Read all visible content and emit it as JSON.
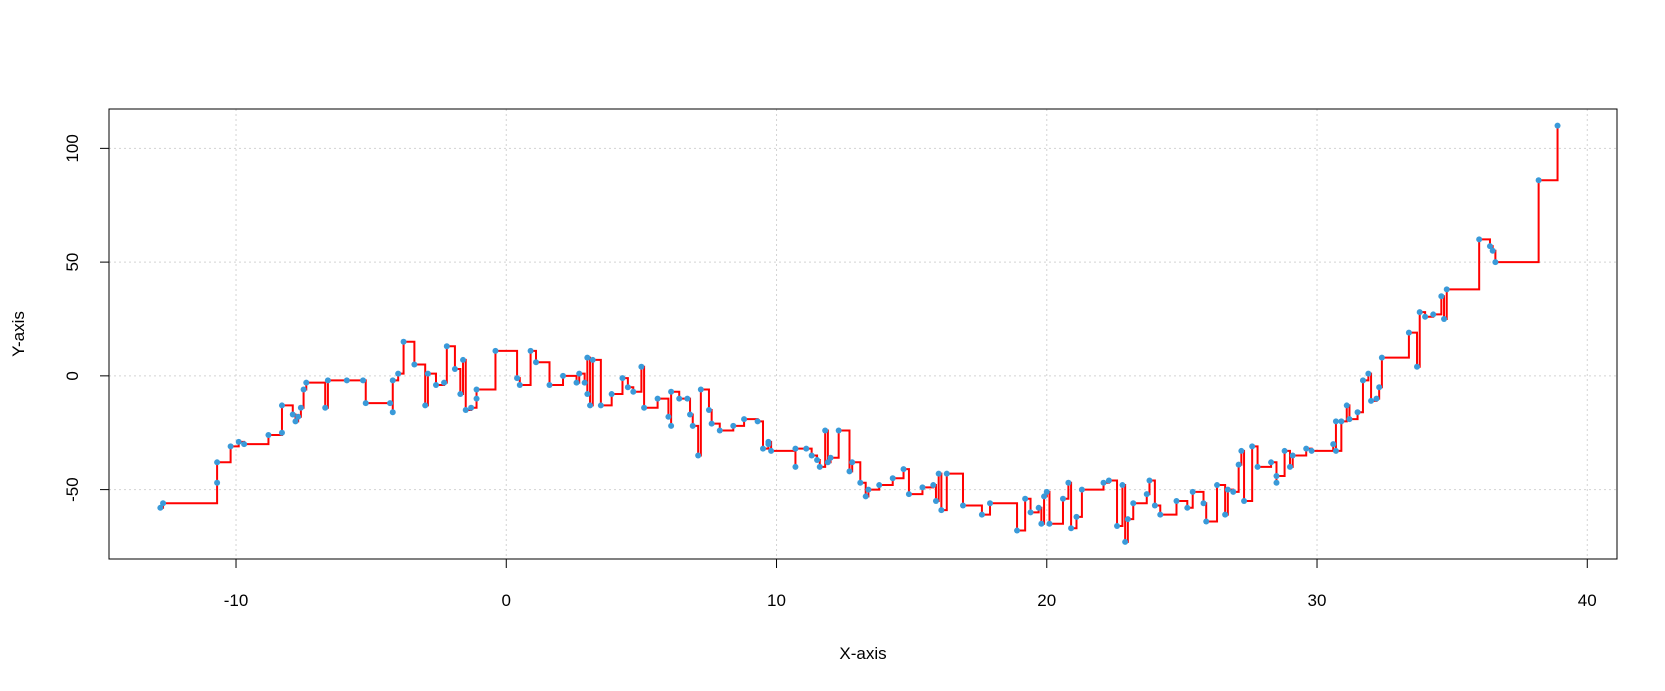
{
  "chart_data": {
    "type": "line",
    "drawstyle": "steps-post",
    "show_points": true,
    "xlabel": "X-axis",
    "ylabel": "Y-axis",
    "xlim": [
      -14.7,
      41.1
    ],
    "ylim": [
      -80.5,
      117.3
    ],
    "xticks": [
      -10,
      0,
      10,
      20,
      30,
      40
    ],
    "yticks": [
      -50,
      0,
      50,
      100
    ],
    "grid": true,
    "line_color": "#ff0000",
    "point_color": "#3a9ad9",
    "x": [
      -12.8,
      -12.7,
      -10.7,
      -10.7,
      -10.2,
      -9.9,
      -9.7,
      -8.8,
      -8.3,
      -8.3,
      -7.9,
      -7.8,
      -7.7,
      -7.6,
      -7.5,
      -7.4,
      -6.7,
      -6.6,
      -5.9,
      -5.3,
      -5.2,
      -4.3,
      -4.2,
      -4.2,
      -4.0,
      -3.8,
      -3.4,
      -3.0,
      -2.9,
      -2.6,
      -2.3,
      -2.2,
      -1.9,
      -1.7,
      -1.6,
      -1.5,
      -1.3,
      -1.1,
      -1.1,
      -0.4,
      0.4,
      0.5,
      0.9,
      1.1,
      1.6,
      2.1,
      2.6,
      2.7,
      2.9,
      3.0,
      3.0,
      3.1,
      3.2,
      3.5,
      3.9,
      4.3,
      4.5,
      4.7,
      5.0,
      5.1,
      5.6,
      6.0,
      6.1,
      6.1,
      6.4,
      6.7,
      6.8,
      6.9,
      7.1,
      7.2,
      7.5,
      7.6,
      7.9,
      8.4,
      8.8,
      9.3,
      9.5,
      9.7,
      9.7,
      9.8,
      10.7,
      10.7,
      11.1,
      11.3,
      11.5,
      11.6,
      11.8,
      11.9,
      12.0,
      12.3,
      12.7,
      12.8,
      13.1,
      13.3,
      13.4,
      13.8,
      14.3,
      14.7,
      14.9,
      15.4,
      15.8,
      15.9,
      16.0,
      16.1,
      16.3,
      16.9,
      17.6,
      17.9,
      18.9,
      19.2,
      19.4,
      19.7,
      19.8,
      19.9,
      20.0,
      20.1,
      20.6,
      20.8,
      20.9,
      21.1,
      21.3,
      22.1,
      22.3,
      22.6,
      22.8,
      22.9,
      23.0,
      23.2,
      23.7,
      23.8,
      24.0,
      24.2,
      24.8,
      25.2,
      25.4,
      25.8,
      25.9,
      26.3,
      26.6,
      26.7,
      26.9,
      27.1,
      27.2,
      27.3,
      27.6,
      27.8,
      28.3,
      28.5,
      28.5,
      28.8,
      29.0,
      29.1,
      29.6,
      29.8,
      30.6,
      30.7,
      30.7,
      30.9,
      31.1,
      31.2,
      31.5,
      31.7,
      31.9,
      32.0,
      32.2,
      32.3,
      32.4,
      33.4,
      33.7,
      33.8,
      34.0,
      34.3,
      34.6,
      34.7,
      34.8,
      36.0,
      36.4,
      36.5,
      36.6,
      38.2,
      38.9
    ],
    "values": [
      -58,
      -56,
      -47,
      -38,
      -31,
      -29,
      -30,
      -26,
      -25,
      -13,
      -17,
      -20,
      -18,
      -14,
      -6,
      -3,
      -14,
      -2,
      -2,
      -2,
      -12,
      -12,
      -16,
      -2,
      1,
      15,
      5,
      -13,
      1,
      -4,
      -3,
      13,
      3,
      -8,
      7,
      -15,
      -14,
      -10,
      -6,
      11,
      -1,
      -4,
      11,
      6,
      -4,
      0,
      -3,
      1,
      -3,
      -8,
      8,
      -13,
      7,
      -13,
      -8,
      -1,
      -5,
      -7,
      4,
      -14,
      -10,
      -18,
      -22,
      -7,
      -10,
      -10,
      -17,
      -22,
      -35,
      -6,
      -15,
      -21,
      -24,
      -22,
      -19,
      -20,
      -32,
      -30,
      -29,
      -33,
      -40,
      -32,
      -32,
      -35,
      -37,
      -40,
      -24,
      -38,
      -36,
      -24,
      -42,
      -38,
      -47,
      -53,
      -50,
      -48,
      -45,
      -41,
      -52,
      -49,
      -48,
      -55,
      -43,
      -59,
      -43,
      -57,
      -61,
      -56,
      -68,
      -54,
      -60,
      -58,
      -65,
      -53,
      -51,
      -65,
      -54,
      -47,
      -67,
      -62,
      -50,
      -47,
      -46,
      -66,
      -48,
      -73,
      -63,
      -56,
      -52,
      -46,
      -57,
      -61,
      -55,
      -58,
      -51,
      -56,
      -64,
      -48,
      -61,
      -50,
      -51,
      -39,
      -33,
      -55,
      -31,
      -40,
      -38,
      -47,
      -44,
      -33,
      -40,
      -35,
      -32,
      -33,
      -30,
      -20,
      -33,
      -20,
      -13,
      -19,
      -16,
      -2,
      1,
      -11,
      -10,
      -5,
      8,
      19,
      4,
      28,
      26,
      27,
      35,
      25,
      38,
      60,
      57,
      55,
      50,
      86,
      110
    ]
  }
}
